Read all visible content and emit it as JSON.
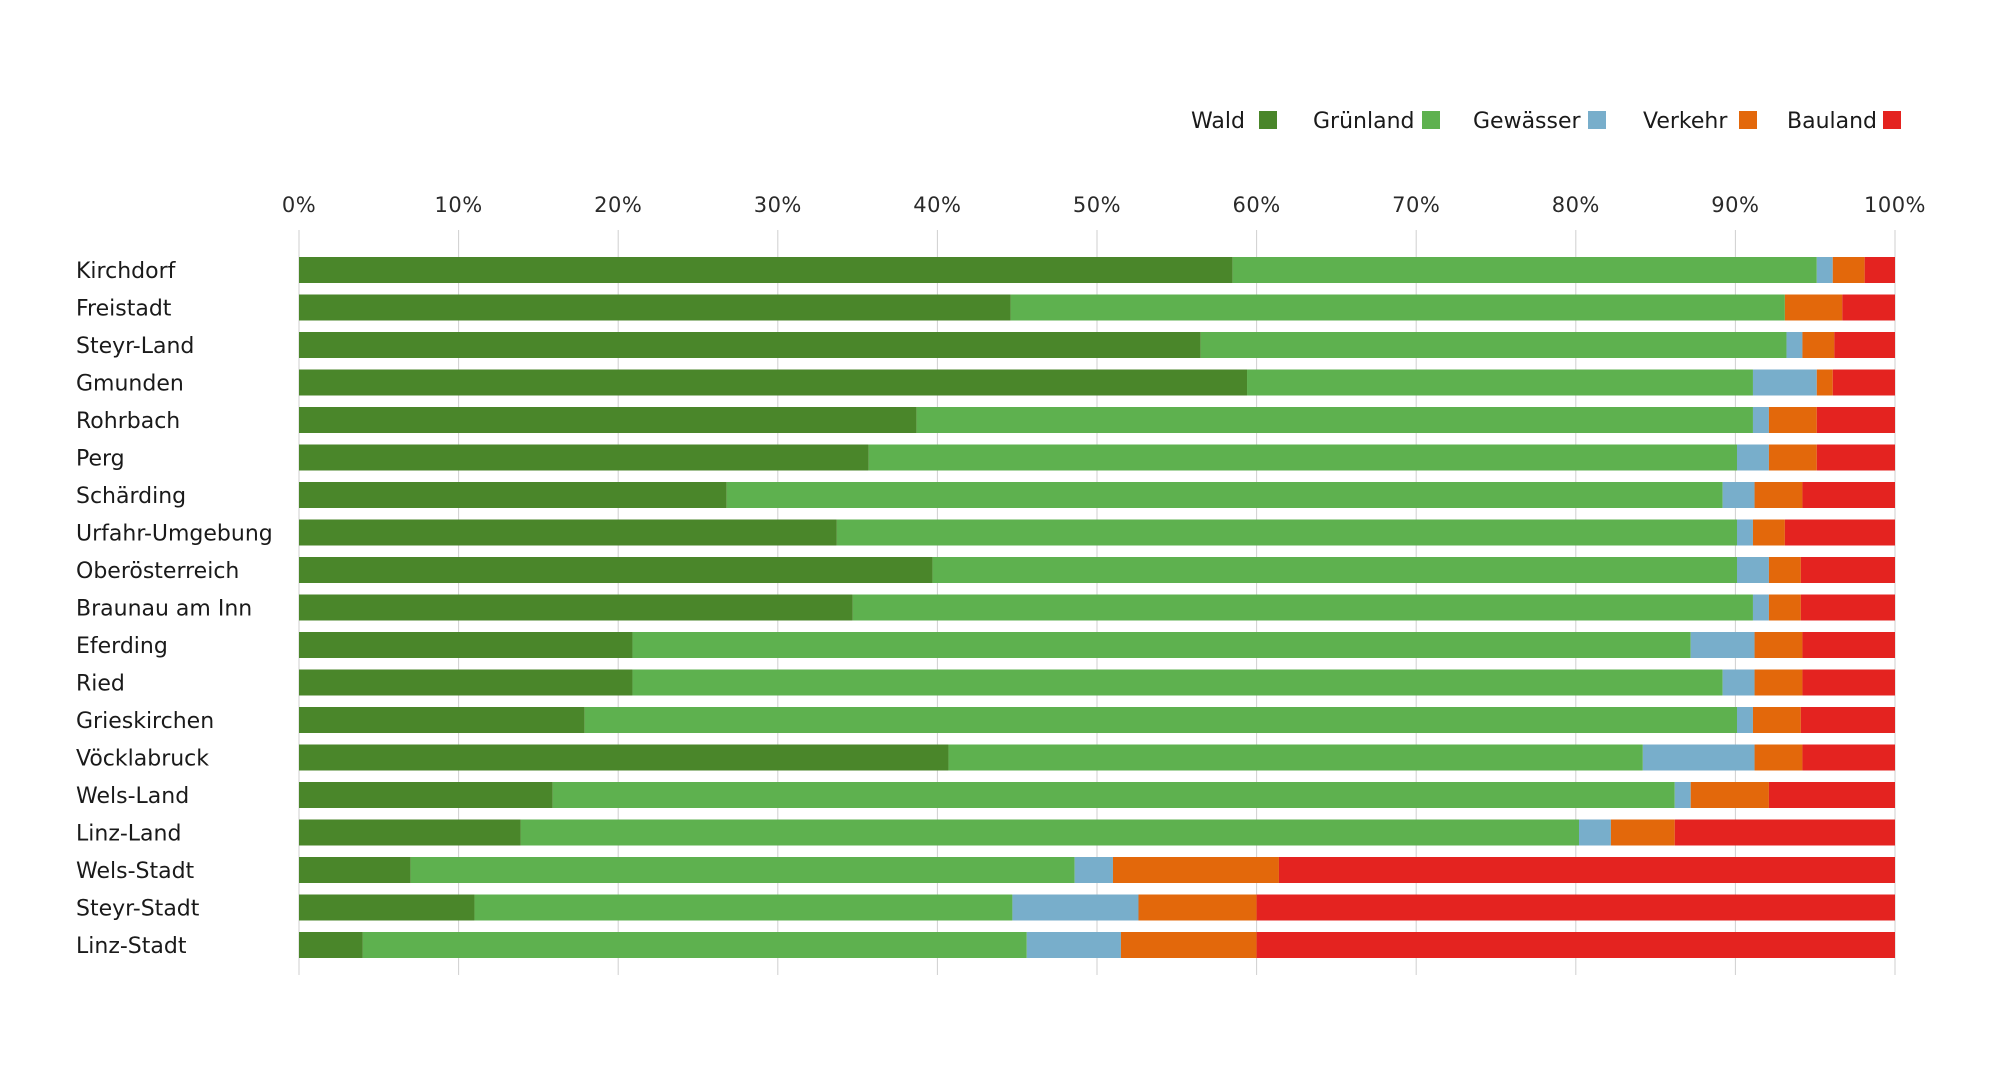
{
  "chart_data": {
    "type": "bar",
    "orientation": "horizontal",
    "stacked": true,
    "title": "",
    "xlabel": "",
    "ylabel": "",
    "xlim": [
      0,
      100
    ],
    "xticks": [
      "0%",
      "10%",
      "20%",
      "30%",
      "40%",
      "50%",
      "60%",
      "70%",
      "80%",
      "90%",
      "100%"
    ],
    "grid": true,
    "legend_position": "top-right",
    "categories": [
      "Kirchdorf",
      "Freistadt",
      "Steyr-Land",
      "Gmunden",
      "Rohrbach",
      "Perg",
      "Schärding",
      "Urfahr-Umgebung",
      "Oberösterreich",
      "Braunau am Inn",
      "Eferding",
      "Ried",
      "Grieskirchen",
      "Vöcklabruck",
      "Wels-Land",
      "Linz-Land",
      "Wels-Stadt",
      "Steyr-Stadt",
      "Linz-Stadt"
    ],
    "series": [
      {
        "name": "Wald",
        "color": "#4a862a",
        "values": [
          58.5,
          44.6,
          56.5,
          59.4,
          38.7,
          35.7,
          26.8,
          33.7,
          39.7,
          34.7,
          20.9,
          20.9,
          17.9,
          40.7,
          15.9,
          13.9,
          7.0,
          11.0,
          4.0
        ]
      },
      {
        "name": "Grünland",
        "color": "#5eb14f",
        "values": [
          36.6,
          48.5,
          36.7,
          31.7,
          52.4,
          54.4,
          62.4,
          56.4,
          50.4,
          56.4,
          66.3,
          68.3,
          72.2,
          43.5,
          70.3,
          66.3,
          41.6,
          33.7,
          41.6
        ]
      },
      {
        "name": "Gewässer",
        "color": "#78aecb",
        "values": [
          1.0,
          0.0,
          1.0,
          4.0,
          1.0,
          2.0,
          2.0,
          1.0,
          2.0,
          1.0,
          4.0,
          2.0,
          1.0,
          7.0,
          1.0,
          2.0,
          2.4,
          7.9,
          5.9
        ]
      },
      {
        "name": "Verkehr",
        "color": "#e3680b",
        "values": [
          2.0,
          3.6,
          2.0,
          1.0,
          3.0,
          3.0,
          3.0,
          2.0,
          2.0,
          2.0,
          3.0,
          3.0,
          3.0,
          3.0,
          4.9,
          4.0,
          10.4,
          7.4,
          8.5
        ]
      },
      {
        "name": "Bauland",
        "color": "#e42320",
        "values": [
          1.9,
          3.3,
          3.8,
          3.9,
          4.9,
          4.9,
          5.8,
          6.9,
          5.9,
          5.9,
          5.8,
          5.8,
          5.9,
          5.8,
          7.9,
          13.8,
          38.6,
          40.0,
          40.0
        ]
      }
    ]
  }
}
